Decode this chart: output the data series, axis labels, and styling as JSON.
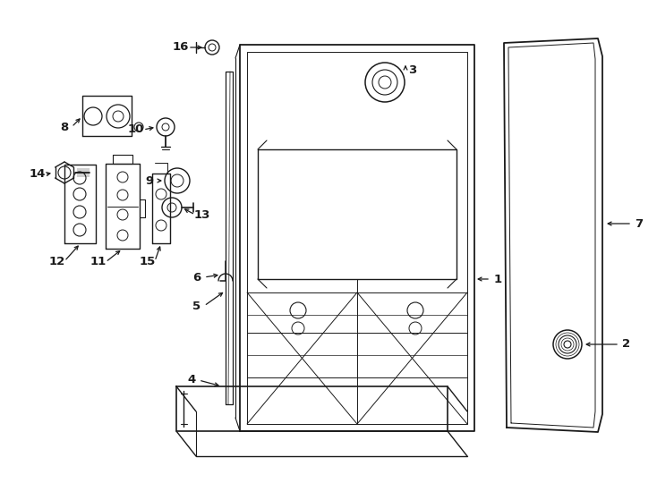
{
  "bg_color": "#ffffff",
  "lc": "#1a1a1a",
  "lw": 1.1,
  "fig_w": 7.34,
  "fig_h": 5.4,
  "dpi": 100
}
